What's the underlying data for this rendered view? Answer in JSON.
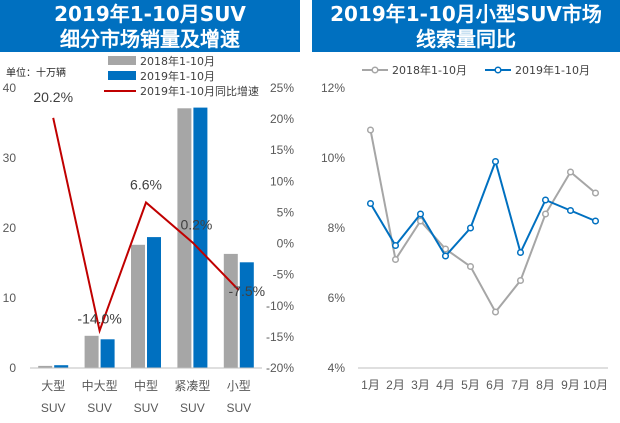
{
  "titles": {
    "left_line1": "2019年1-10月SUV",
    "left_line2": "细分市场销量及增速",
    "right_line1": "2019年1-10月小型SUV市场",
    "right_line2": "线索量同比"
  },
  "colors": {
    "title_bg": "#0070c0",
    "gray": "#a6a6a6",
    "blue": "#0070c0",
    "red": "#c00000"
  },
  "chart_data": [
    {
      "type": "bar",
      "unit_label": "单位：十万辆",
      "categories": [
        [
          "大型",
          "SUV"
        ],
        [
          "中大型",
          "SUV"
        ],
        [
          "中型",
          "SUV"
        ],
        [
          "紧凑型",
          "SUV"
        ],
        [
          "小型",
          "SUV"
        ]
      ],
      "series": [
        {
          "name": "2018年1-10月",
          "values": [
            0.3,
            4.6,
            17.6,
            37.1,
            16.3
          ]
        },
        {
          "name": "2019年1-10月",
          "values": [
            0.4,
            4.1,
            18.7,
            37.2,
            15.1
          ]
        }
      ],
      "line_series": {
        "name": "2019年1-10月同比增速",
        "values": [
          20.2,
          -14.0,
          6.6,
          0.2,
          -7.5
        ],
        "labels": [
          "20.2%",
          "-14.0%",
          "6.6%",
          "0.2%",
          "-7.5%"
        ]
      },
      "y_left": {
        "min": 0,
        "max": 40,
        "ticks": [
          "0",
          "10",
          "20",
          "30",
          "40"
        ]
      },
      "y_right": {
        "min": -20,
        "max": 25,
        "ticks": [
          "-20%",
          "-15%",
          "-10%",
          "-5%",
          "0%",
          "5%",
          "10%",
          "15%",
          "20%",
          "25%"
        ]
      }
    },
    {
      "type": "line",
      "categories": [
        "1月",
        "2月",
        "3月",
        "4月",
        "5月",
        "6月",
        "7月",
        "8月",
        "9月",
        "10月"
      ],
      "series": [
        {
          "name": "2018年1-10月",
          "values": [
            10.8,
            7.1,
            8.2,
            7.4,
            6.9,
            5.6,
            6.5,
            8.4,
            9.6,
            9.0
          ]
        },
        {
          "name": "2019年1-10月",
          "values": [
            8.7,
            7.5,
            8.4,
            7.2,
            8.0,
            9.9,
            7.3,
            8.8,
            8.5,
            8.2
          ]
        }
      ],
      "y": {
        "min": 4,
        "max": 12,
        "ticks": [
          "4%",
          "6%",
          "8%",
          "10%",
          "12%"
        ]
      }
    }
  ]
}
